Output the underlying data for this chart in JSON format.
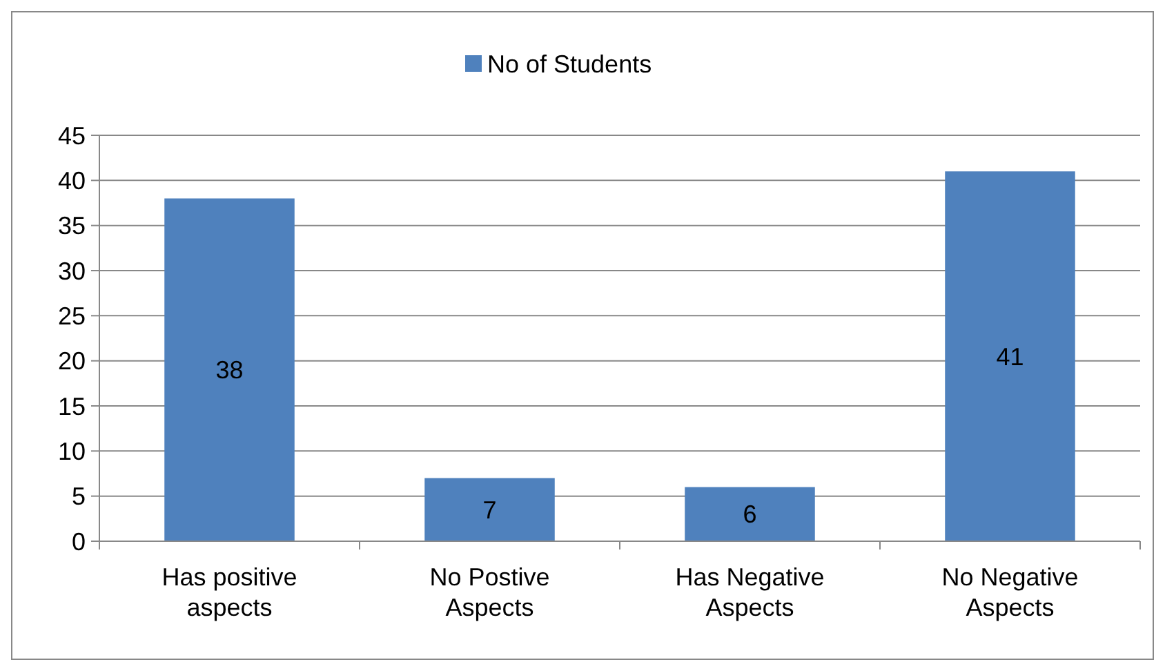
{
  "chart_data": {
    "type": "bar",
    "categories": [
      "Has positive aspects",
      "No Postive Aspects",
      "Has Negative Aspects",
      "No Negative Aspects"
    ],
    "series": [
      {
        "name": "No of Students",
        "color": "#4f81bd",
        "values": [
          38,
          7,
          6,
          41
        ]
      }
    ],
    "ylim": [
      0,
      45
    ],
    "yticks": [
      0,
      5,
      10,
      15,
      20,
      25,
      30,
      35,
      40,
      45
    ],
    "grid": "y",
    "legend": "top",
    "data_labels": true
  }
}
